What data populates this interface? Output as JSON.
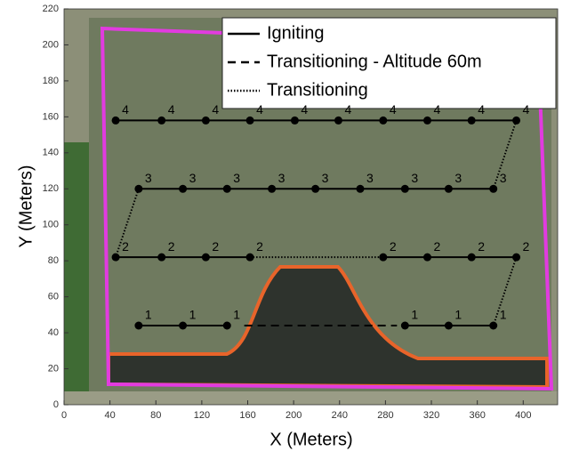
{
  "chart_data": {
    "type": "line",
    "xlabel": "X (Meters)",
    "ylabel": "Y (Meters)",
    "xlim": [
      0,
      430
    ],
    "ylim": [
      0,
      220
    ],
    "xticks": [
      0,
      40,
      80,
      120,
      160,
      200,
      240,
      280,
      320,
      360,
      400
    ],
    "yticks": [
      0,
      20,
      40,
      60,
      80,
      100,
      120,
      140,
      160,
      180,
      200,
      220
    ],
    "legend": "upper right",
    "series": [
      {
        "name": "Igniting",
        "color": "#000000",
        "style": "solid",
        "markers": true,
        "x": [
          45,
          85,
          123.5,
          162,
          201,
          239,
          278,
          316.5,
          355,
          394,
          null,
          65,
          103.5,
          142,
          181,
          219,
          258,
          297,
          335,
          374,
          null,
          45,
          85,
          123.5,
          162,
          null,
          278,
          316.5,
          355,
          394,
          null,
          65,
          103.5,
          142,
          null,
          297,
          335,
          374
        ],
        "values": [
          158,
          158,
          158,
          158,
          158,
          158,
          158,
          158,
          158,
          158,
          null,
          120,
          120,
          120,
          120,
          120,
          120,
          120,
          120,
          120,
          null,
          82,
          82,
          82,
          82,
          null,
          82,
          82,
          82,
          82,
          null,
          44,
          44,
          44,
          null,
          44,
          44,
          44
        ],
        "point_labels": [
          4,
          4,
          4,
          4,
          4,
          4,
          4,
          4,
          4,
          4,
          null,
          3,
          3,
          3,
          3,
          3,
          3,
          3,
          3,
          3,
          null,
          2,
          2,
          2,
          2,
          null,
          2,
          2,
          2,
          2,
          null,
          1,
          1,
          1,
          null,
          1,
          1,
          1
        ]
      },
      {
        "name": "Transitioning - Altitude 60m",
        "color": "#000000",
        "style": "dashed",
        "markers": false,
        "x": [
          157,
          290
        ],
        "values": [
          44,
          44
        ]
      },
      {
        "name": "Transitioning",
        "color": "#000000",
        "style": "dotted",
        "markers": false,
        "x": [
          394,
          374,
          null,
          65,
          45,
          null,
          162,
          278,
          null,
          394,
          374
        ],
        "values": [
          158,
          120,
          null,
          120,
          82,
          null,
          82,
          82,
          null,
          82,
          44
        ]
      }
    ]
  }
}
